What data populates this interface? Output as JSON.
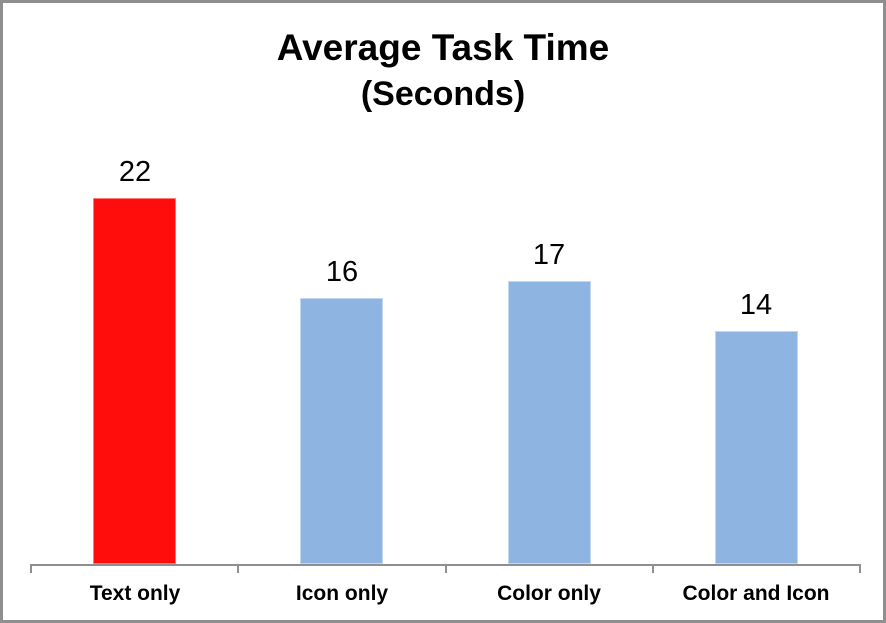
{
  "window": {
    "background": "#ffffff",
    "frame_border_color": "#8f8f8f"
  },
  "chart_data": {
    "type": "bar",
    "title": "Average Task Time",
    "subtitle": "(Seconds)",
    "categories": [
      "Text only",
      "Icon only",
      "Color only",
      "Color and Icon"
    ],
    "values": [
      22,
      16,
      17,
      14
    ],
    "value_labels": [
      "22",
      "16",
      "17",
      "14"
    ],
    "series": [
      {
        "name": "Average Task Time (Seconds)",
        "values": [
          22,
          16,
          17,
          14
        ]
      }
    ],
    "bar_colors": [
      "#ff0d0d",
      "#8eb4e2",
      "#8eb4e2",
      "#8eb4e2"
    ],
    "highlight_color": "#ff0d0d",
    "default_bar_color": "#8eb4e2",
    "axis_color": "#8f8f8f",
    "text_color": "#000000",
    "xlabel": "",
    "ylabel": "",
    "ylim": [
      0,
      22
    ],
    "grid": false,
    "legend": "none",
    "data_labels": "above bars",
    "y_axis_ticks": "none"
  }
}
